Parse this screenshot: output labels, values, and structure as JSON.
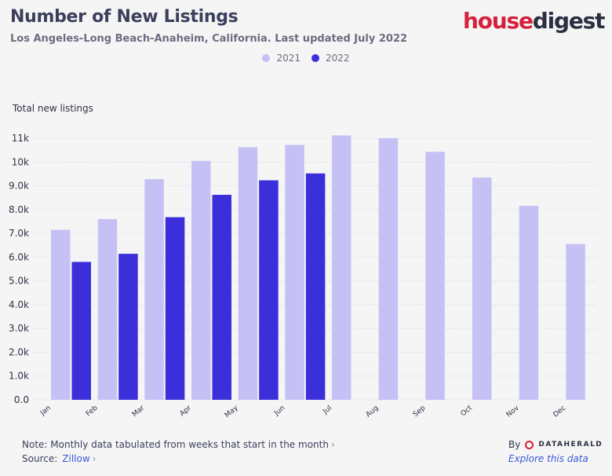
{
  "header": {
    "title": "Number of New Listings",
    "subtitle": "Los Angeles-Long Beach-Anaheim, California. Last updated July 2022"
  },
  "logo": {
    "part1": "house",
    "part2": "digest"
  },
  "legend": [
    {
      "label": "2021",
      "color": "#c6c1f5"
    },
    {
      "label": "2022",
      "color": "#3a2fd9"
    }
  ],
  "footer": {
    "note": "Note: Monthly data tabulated from weeks that start in the month",
    "source_label": "Source:",
    "source_link": "Zillow",
    "by_label": "By",
    "brand": "DATAHERALD",
    "explore": "Explore this data"
  },
  "chart_data": {
    "type": "bar",
    "title": "Number of New Listings",
    "ylabel": "Total new listings",
    "xlabel": "",
    "ylim": [
      0,
      11000
    ],
    "yticks": [
      "0.0",
      "1.0k",
      "2.0k",
      "3.0k",
      "4.0k",
      "5.0k",
      "6.0k",
      "7.0k",
      "8.0k",
      "9.0k",
      "10k",
      "11k"
    ],
    "categories": [
      "Jan",
      "Feb",
      "Mar",
      "Apr",
      "May",
      "Jun",
      "Jul",
      "Aug",
      "Sep",
      "Oct",
      "Nov",
      "Dec"
    ],
    "series": [
      {
        "name": "2021",
        "color": "#c6c1f5",
        "values": [
          7150,
          7600,
          9280,
          10050,
          10620,
          10720,
          11120,
          11000,
          10430,
          9350,
          8160,
          6550
        ]
      },
      {
        "name": "2022",
        "color": "#3a2fd9",
        "values": [
          5800,
          6140,
          7680,
          8620,
          9230,
          9520,
          null,
          null,
          null,
          null,
          null,
          null
        ]
      }
    ]
  }
}
